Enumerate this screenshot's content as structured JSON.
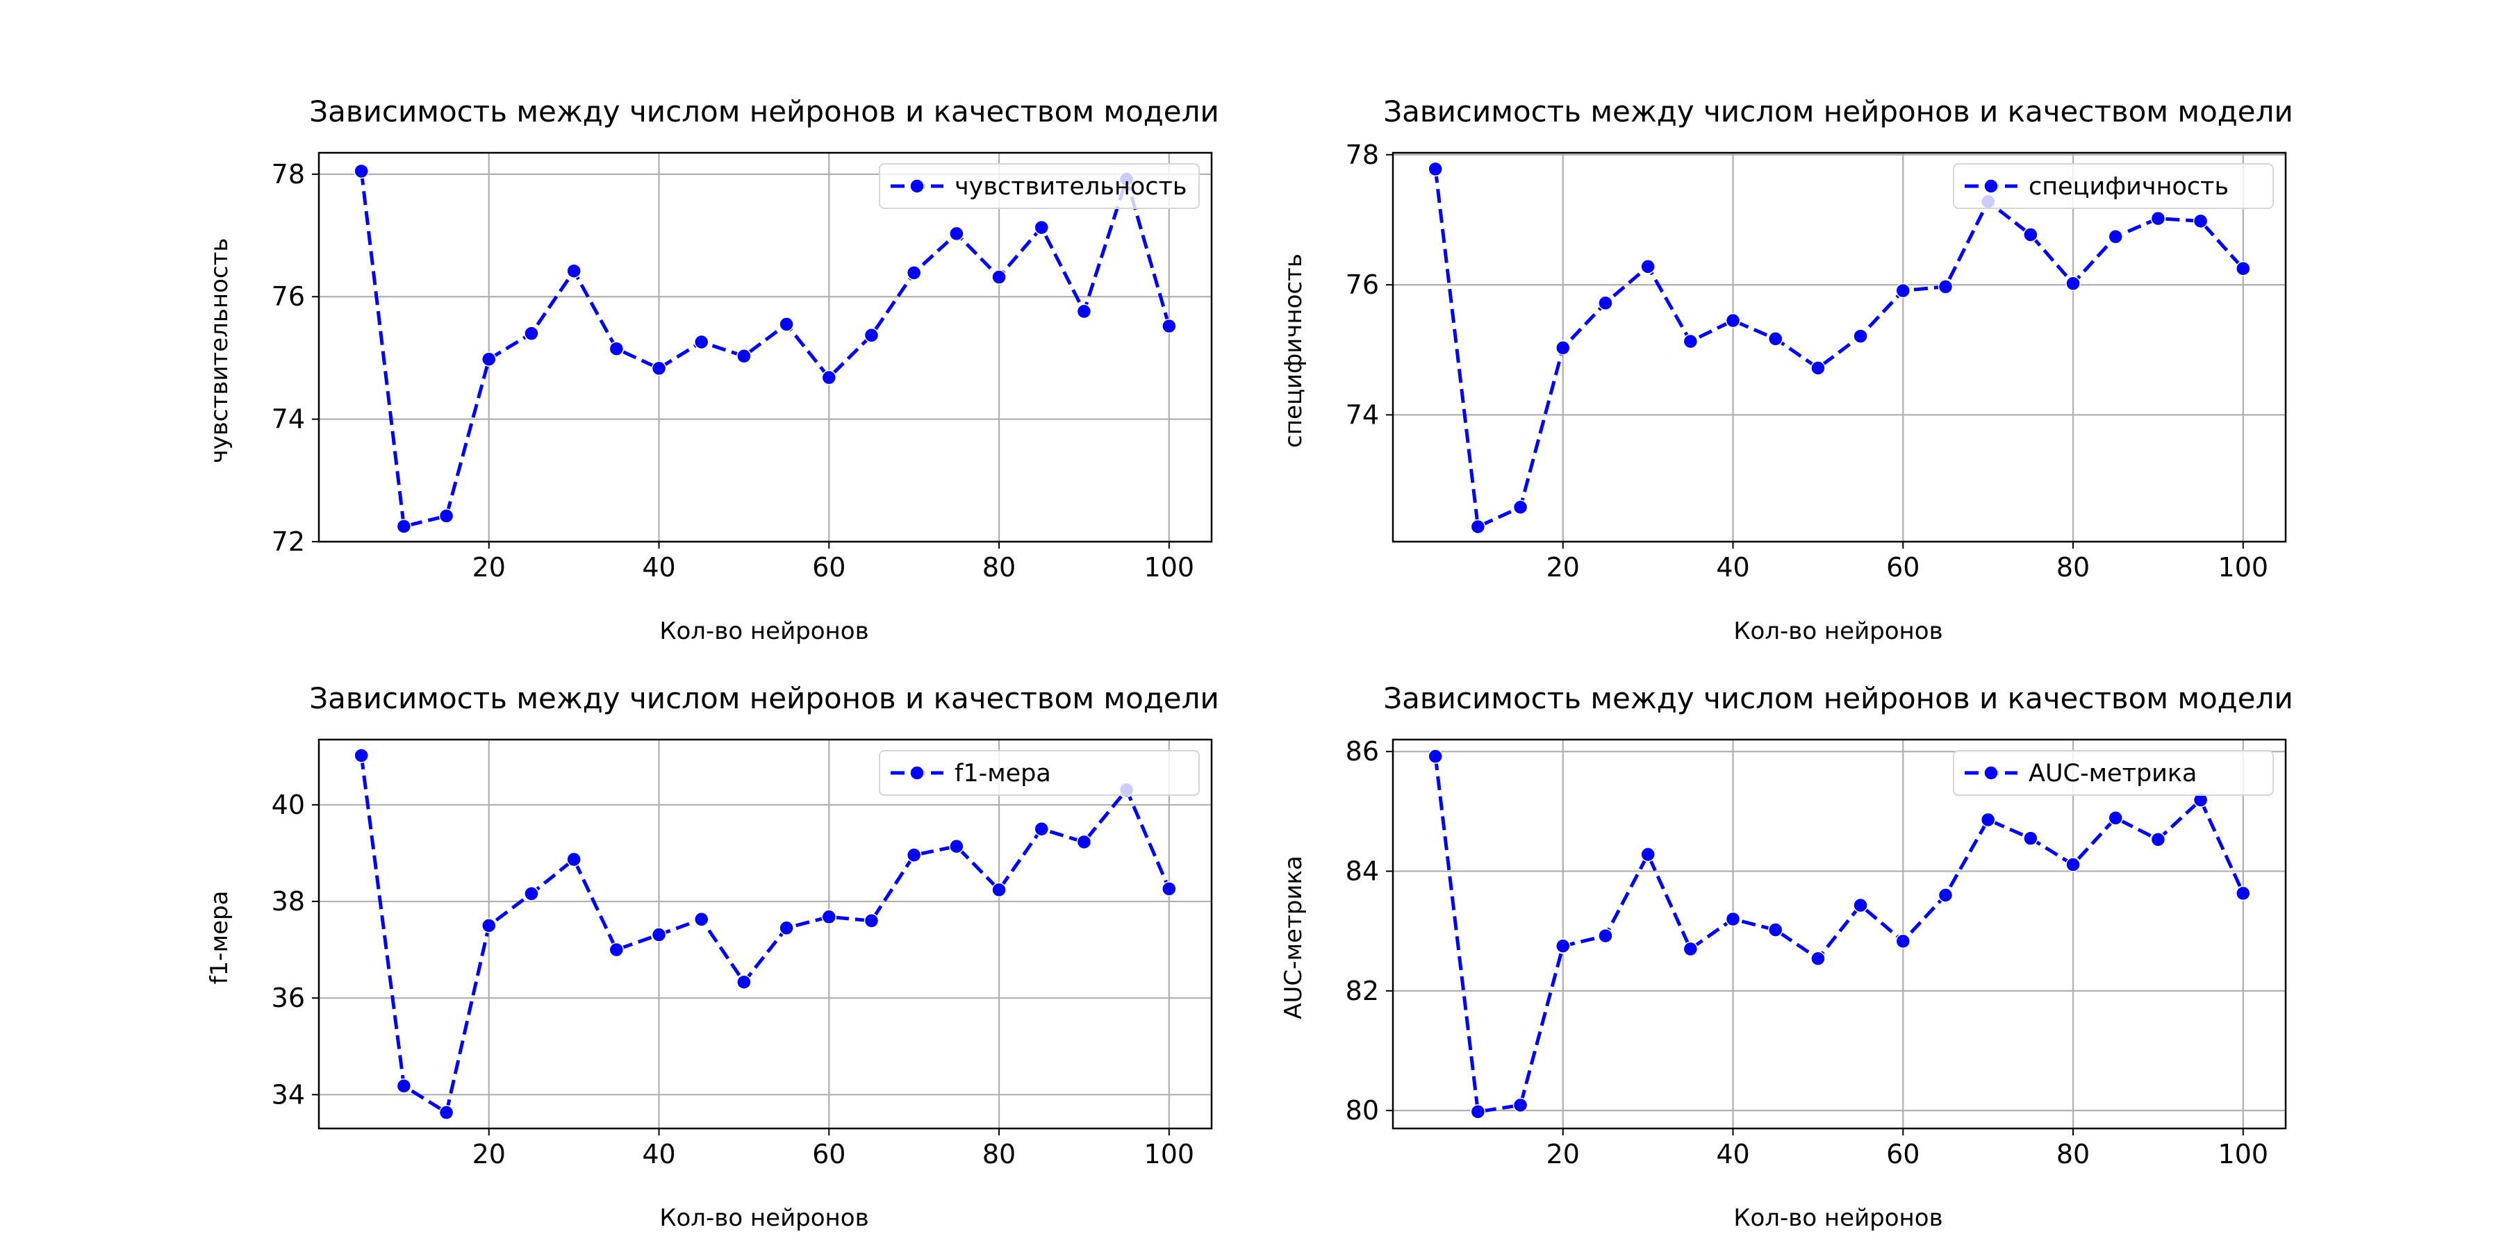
{
  "chart_data": [
    {
      "type": "line",
      "title": "Зависимость между числом нейронов и качеством модели",
      "xlabel": "Кол-во нейронов",
      "ylabel": "чувствительность",
      "x": [
        5,
        10,
        15,
        20,
        25,
        30,
        35,
        40,
        45,
        50,
        55,
        60,
        65,
        70,
        75,
        80,
        85,
        90,
        95,
        100
      ],
      "series": [
        {
          "name": "чувствительность",
          "values": [
            78.05,
            72.25,
            72.42,
            74.98,
            75.4,
            76.42,
            75.15,
            74.83,
            75.26,
            75.03,
            75.55,
            74.68,
            75.37,
            76.39,
            77.03,
            76.32,
            77.13,
            75.76,
            77.92,
            75.52
          ]
        }
      ],
      "xlim": [
        0,
        105
      ],
      "ylim": [
        72,
        78.35
      ],
      "xticks": [
        20,
        40,
        60,
        80,
        100
      ],
      "yticks": [
        72,
        74,
        76,
        78
      ],
      "grid": true,
      "legend_position": "upper-right",
      "line_color": "#0000ff",
      "line_style": "dashed",
      "marker": "circle"
    },
    {
      "type": "line",
      "title": "Зависимость между числом нейронов и качеством модели",
      "xlabel": "Кол-во нейронов",
      "ylabel": "специфичность",
      "x": [
        5,
        10,
        15,
        20,
        25,
        30,
        35,
        40,
        45,
        50,
        55,
        60,
        65,
        70,
        75,
        80,
        85,
        90,
        95,
        100
      ],
      "series": [
        {
          "name": "специфичность",
          "values": [
            77.78,
            72.28,
            72.58,
            75.03,
            75.72,
            76.28,
            75.13,
            75.45,
            75.17,
            74.72,
            75.21,
            75.91,
            75.97,
            77.28,
            76.77,
            76.02,
            76.74,
            77.02,
            76.98,
            76.25
          ]
        }
      ],
      "xlim": [
        0,
        105
      ],
      "ylim": [
        72.05,
        78.03
      ],
      "xticks": [
        20,
        40,
        60,
        80,
        100
      ],
      "yticks": [
        74,
        76,
        78
      ],
      "grid": true,
      "legend_position": "upper-right",
      "line_color": "#0000ff",
      "line_style": "dashed",
      "marker": "circle"
    },
    {
      "type": "line",
      "title": "Зависимость между числом нейронов и качеством модели",
      "xlabel": "Кол-во нейронов",
      "ylabel": "f1-мера",
      "x": [
        5,
        10,
        15,
        20,
        25,
        30,
        35,
        40,
        45,
        50,
        55,
        60,
        65,
        70,
        75,
        80,
        85,
        90,
        95,
        100
      ],
      "series": [
        {
          "name": "f1-мера",
          "values": [
            41.02,
            34.18,
            33.63,
            37.5,
            38.16,
            38.87,
            37.0,
            37.31,
            37.63,
            36.33,
            37.45,
            37.68,
            37.6,
            38.96,
            39.14,
            38.24,
            39.5,
            39.23,
            40.31,
            38.26
          ]
        }
      ],
      "xlim": [
        0,
        105
      ],
      "ylim": [
        33.3,
        41.35
      ],
      "xticks": [
        20,
        40,
        60,
        80,
        100
      ],
      "yticks": [
        34,
        36,
        38,
        40
      ],
      "grid": true,
      "legend_position": "upper-right",
      "line_color": "#0000ff",
      "line_style": "dashed",
      "marker": "circle"
    },
    {
      "type": "line",
      "title": "Зависимость между числом нейронов и качеством модели",
      "xlabel": "Кол-во нейронов",
      "ylabel": "AUC-метрика",
      "x": [
        5,
        10,
        15,
        20,
        25,
        30,
        35,
        40,
        45,
        50,
        55,
        60,
        65,
        70,
        75,
        80,
        85,
        90,
        95,
        100
      ],
      "series": [
        {
          "name": "AUC-метрика",
          "values": [
            85.92,
            79.98,
            80.09,
            82.75,
            82.92,
            84.28,
            82.7,
            83.2,
            83.02,
            82.54,
            83.43,
            82.83,
            83.6,
            84.86,
            84.55,
            84.11,
            84.89,
            84.53,
            85.19,
            83.63
          ]
        }
      ],
      "xlim": [
        0,
        105
      ],
      "ylim": [
        79.7,
        86.2
      ],
      "xticks": [
        20,
        40,
        60,
        80,
        100
      ],
      "yticks": [
        80,
        82,
        84,
        86
      ],
      "grid": true,
      "legend_position": "upper-right",
      "line_color": "#0000ff",
      "line_style": "dashed",
      "marker": "circle"
    }
  ]
}
